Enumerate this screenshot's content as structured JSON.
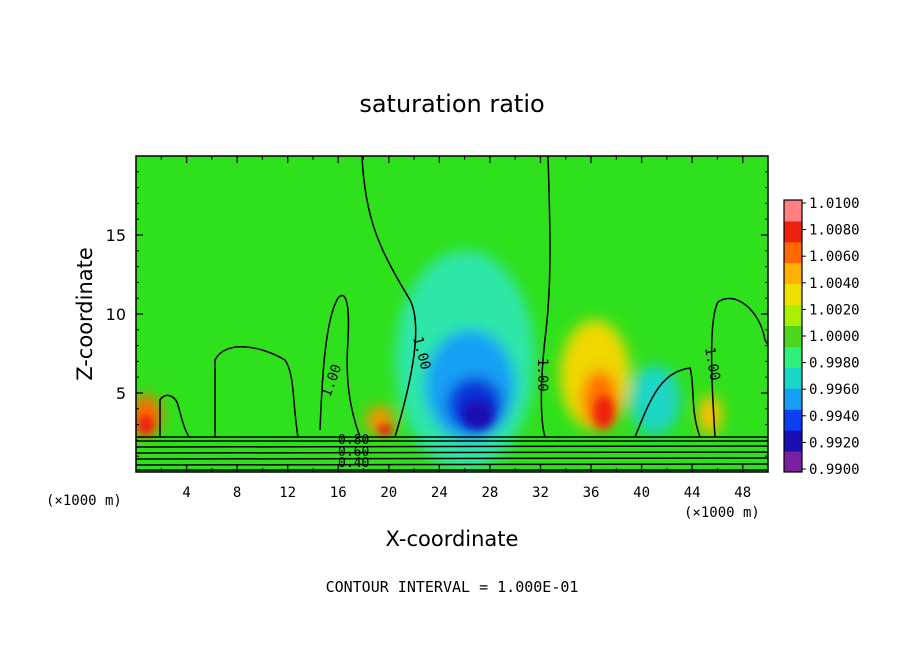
{
  "chart_data": {
    "type": "heatmap",
    "title": "saturation ratio",
    "xlabel": "X-coordinate",
    "ylabel": "Z-coordinate",
    "x_unit": "(×1000 m)",
    "footer": "CONTOUR INTERVAL = 1.000E-01",
    "xlim": [
      0,
      50
    ],
    "ylim": [
      0,
      20
    ],
    "x_ticks": [
      "4",
      "8",
      "12",
      "16",
      "20",
      "24",
      "28",
      "32",
      "36",
      "40",
      "44",
      "48"
    ],
    "y_ticks": [
      "5",
      "10",
      "15"
    ],
    "colorbar": {
      "labels": [
        "1.0100",
        "1.0080",
        "1.0060",
        "1.0040",
        "1.0020",
        "1.0000",
        "0.9980",
        "0.9960",
        "0.9940",
        "0.9920",
        "0.9900"
      ],
      "colors": [
        "#7a1fa0",
        "#1a0fb0",
        "#0a40f0",
        "#15a0f5",
        "#1ad6c6",
        "#2ef07a",
        "#4dd61c",
        "#a8f000",
        "#f0e000",
        "#ffb000",
        "#ff6a00",
        "#ee2010",
        "#ff8080"
      ]
    },
    "contour_labels": [
      "1.00",
      "1.00",
      "1.00",
      "1.00",
      "1.00",
      "0.80",
      "0.60",
      "0.40"
    ]
  }
}
